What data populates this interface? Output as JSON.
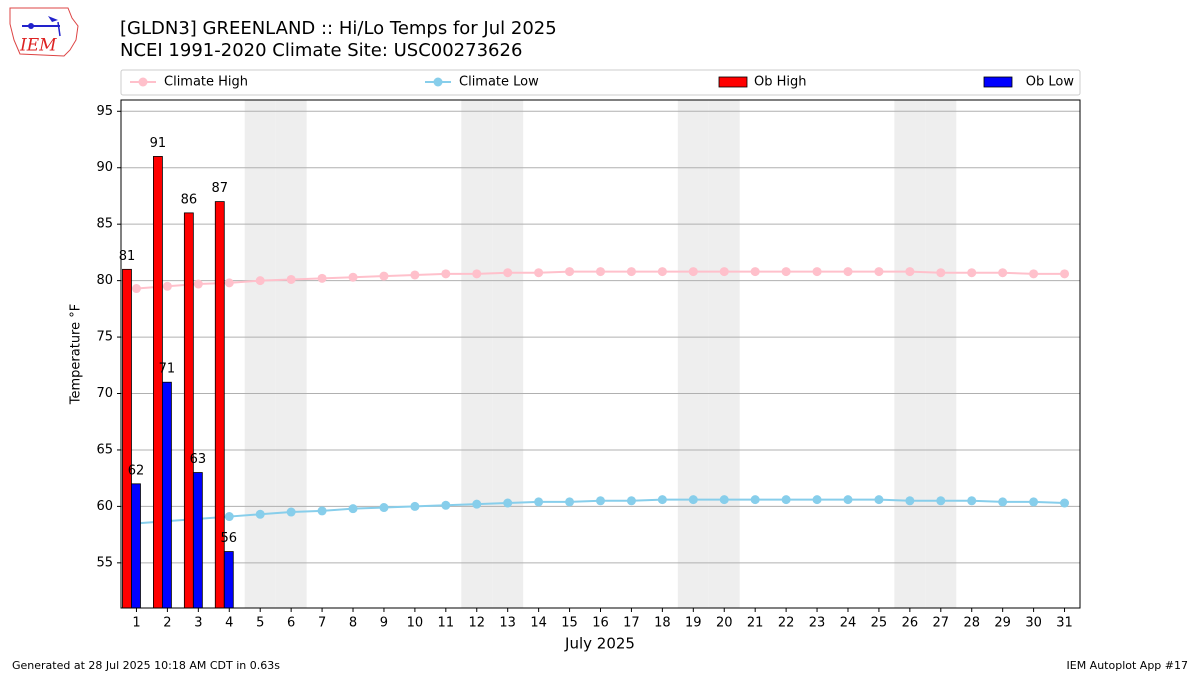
{
  "chart_data": {
    "type": "bar_line",
    "logo_text": "IEM",
    "title": "[GLDN3] GREENLAND :: Hi/Lo Temps for Jul 2025",
    "subtitle": "NCEI 1991-2020 Climate Site: USC00273626",
    "xlabel": "July 2025",
    "ylabel": "Temperature °F",
    "footer_left": "Generated at 28 Jul 2025 10:18 AM CDT in 0.63s",
    "footer_right": "IEM Autoplot App #17",
    "categories": [
      "1",
      "2",
      "3",
      "4",
      "5",
      "6",
      "7",
      "8",
      "9",
      "10",
      "11",
      "12",
      "13",
      "14",
      "15",
      "16",
      "17",
      "18",
      "19",
      "20",
      "21",
      "22",
      "23",
      "24",
      "25",
      "26",
      "27",
      "28",
      "29",
      "30",
      "31"
    ],
    "shaded_categories": [
      "5",
      "6",
      "12",
      "13",
      "19",
      "20",
      "26",
      "27"
    ],
    "shade_color": "#eeeeee",
    "ylim": [
      51,
      96
    ],
    "yticks": [
      55,
      60,
      65,
      70,
      75,
      80,
      85,
      90,
      95
    ],
    "grid": true,
    "series": [
      {
        "name": "Climate High",
        "kind": "line",
        "color": "#ffc0cb",
        "values": [
          79.3,
          79.5,
          79.7,
          79.8,
          80.0,
          80.1,
          80.2,
          80.3,
          80.4,
          80.5,
          80.6,
          80.6,
          80.7,
          80.7,
          80.8,
          80.8,
          80.8,
          80.8,
          80.8,
          80.8,
          80.8,
          80.8,
          80.8,
          80.8,
          80.8,
          80.8,
          80.7,
          80.7,
          80.7,
          80.6,
          80.6
        ]
      },
      {
        "name": "Climate Low",
        "kind": "line",
        "color": "#87ceeb",
        "values": [
          58.5,
          58.7,
          58.9,
          59.1,
          59.3,
          59.5,
          59.6,
          59.8,
          59.9,
          60.0,
          60.1,
          60.2,
          60.3,
          60.4,
          60.4,
          60.5,
          60.5,
          60.6,
          60.6,
          60.6,
          60.6,
          60.6,
          60.6,
          60.6,
          60.6,
          60.5,
          60.5,
          60.5,
          60.4,
          60.4,
          60.3
        ]
      },
      {
        "name": "Ob High",
        "kind": "bar",
        "color": "#ff0000",
        "values": [
          81,
          91,
          86,
          87,
          null,
          null,
          null,
          null,
          null,
          null,
          null,
          null,
          null,
          null,
          null,
          null,
          null,
          null,
          null,
          null,
          null,
          null,
          null,
          null,
          null,
          null,
          null,
          null,
          null,
          null,
          null
        ]
      },
      {
        "name": "Ob Low",
        "kind": "bar",
        "color": "#0000ff",
        "values": [
          62,
          71,
          63,
          56,
          null,
          null,
          null,
          null,
          null,
          null,
          null,
          null,
          null,
          null,
          null,
          null,
          null,
          null,
          null,
          null,
          null,
          null,
          null,
          null,
          null,
          null,
          null,
          null,
          null,
          null,
          null
        ]
      }
    ]
  }
}
